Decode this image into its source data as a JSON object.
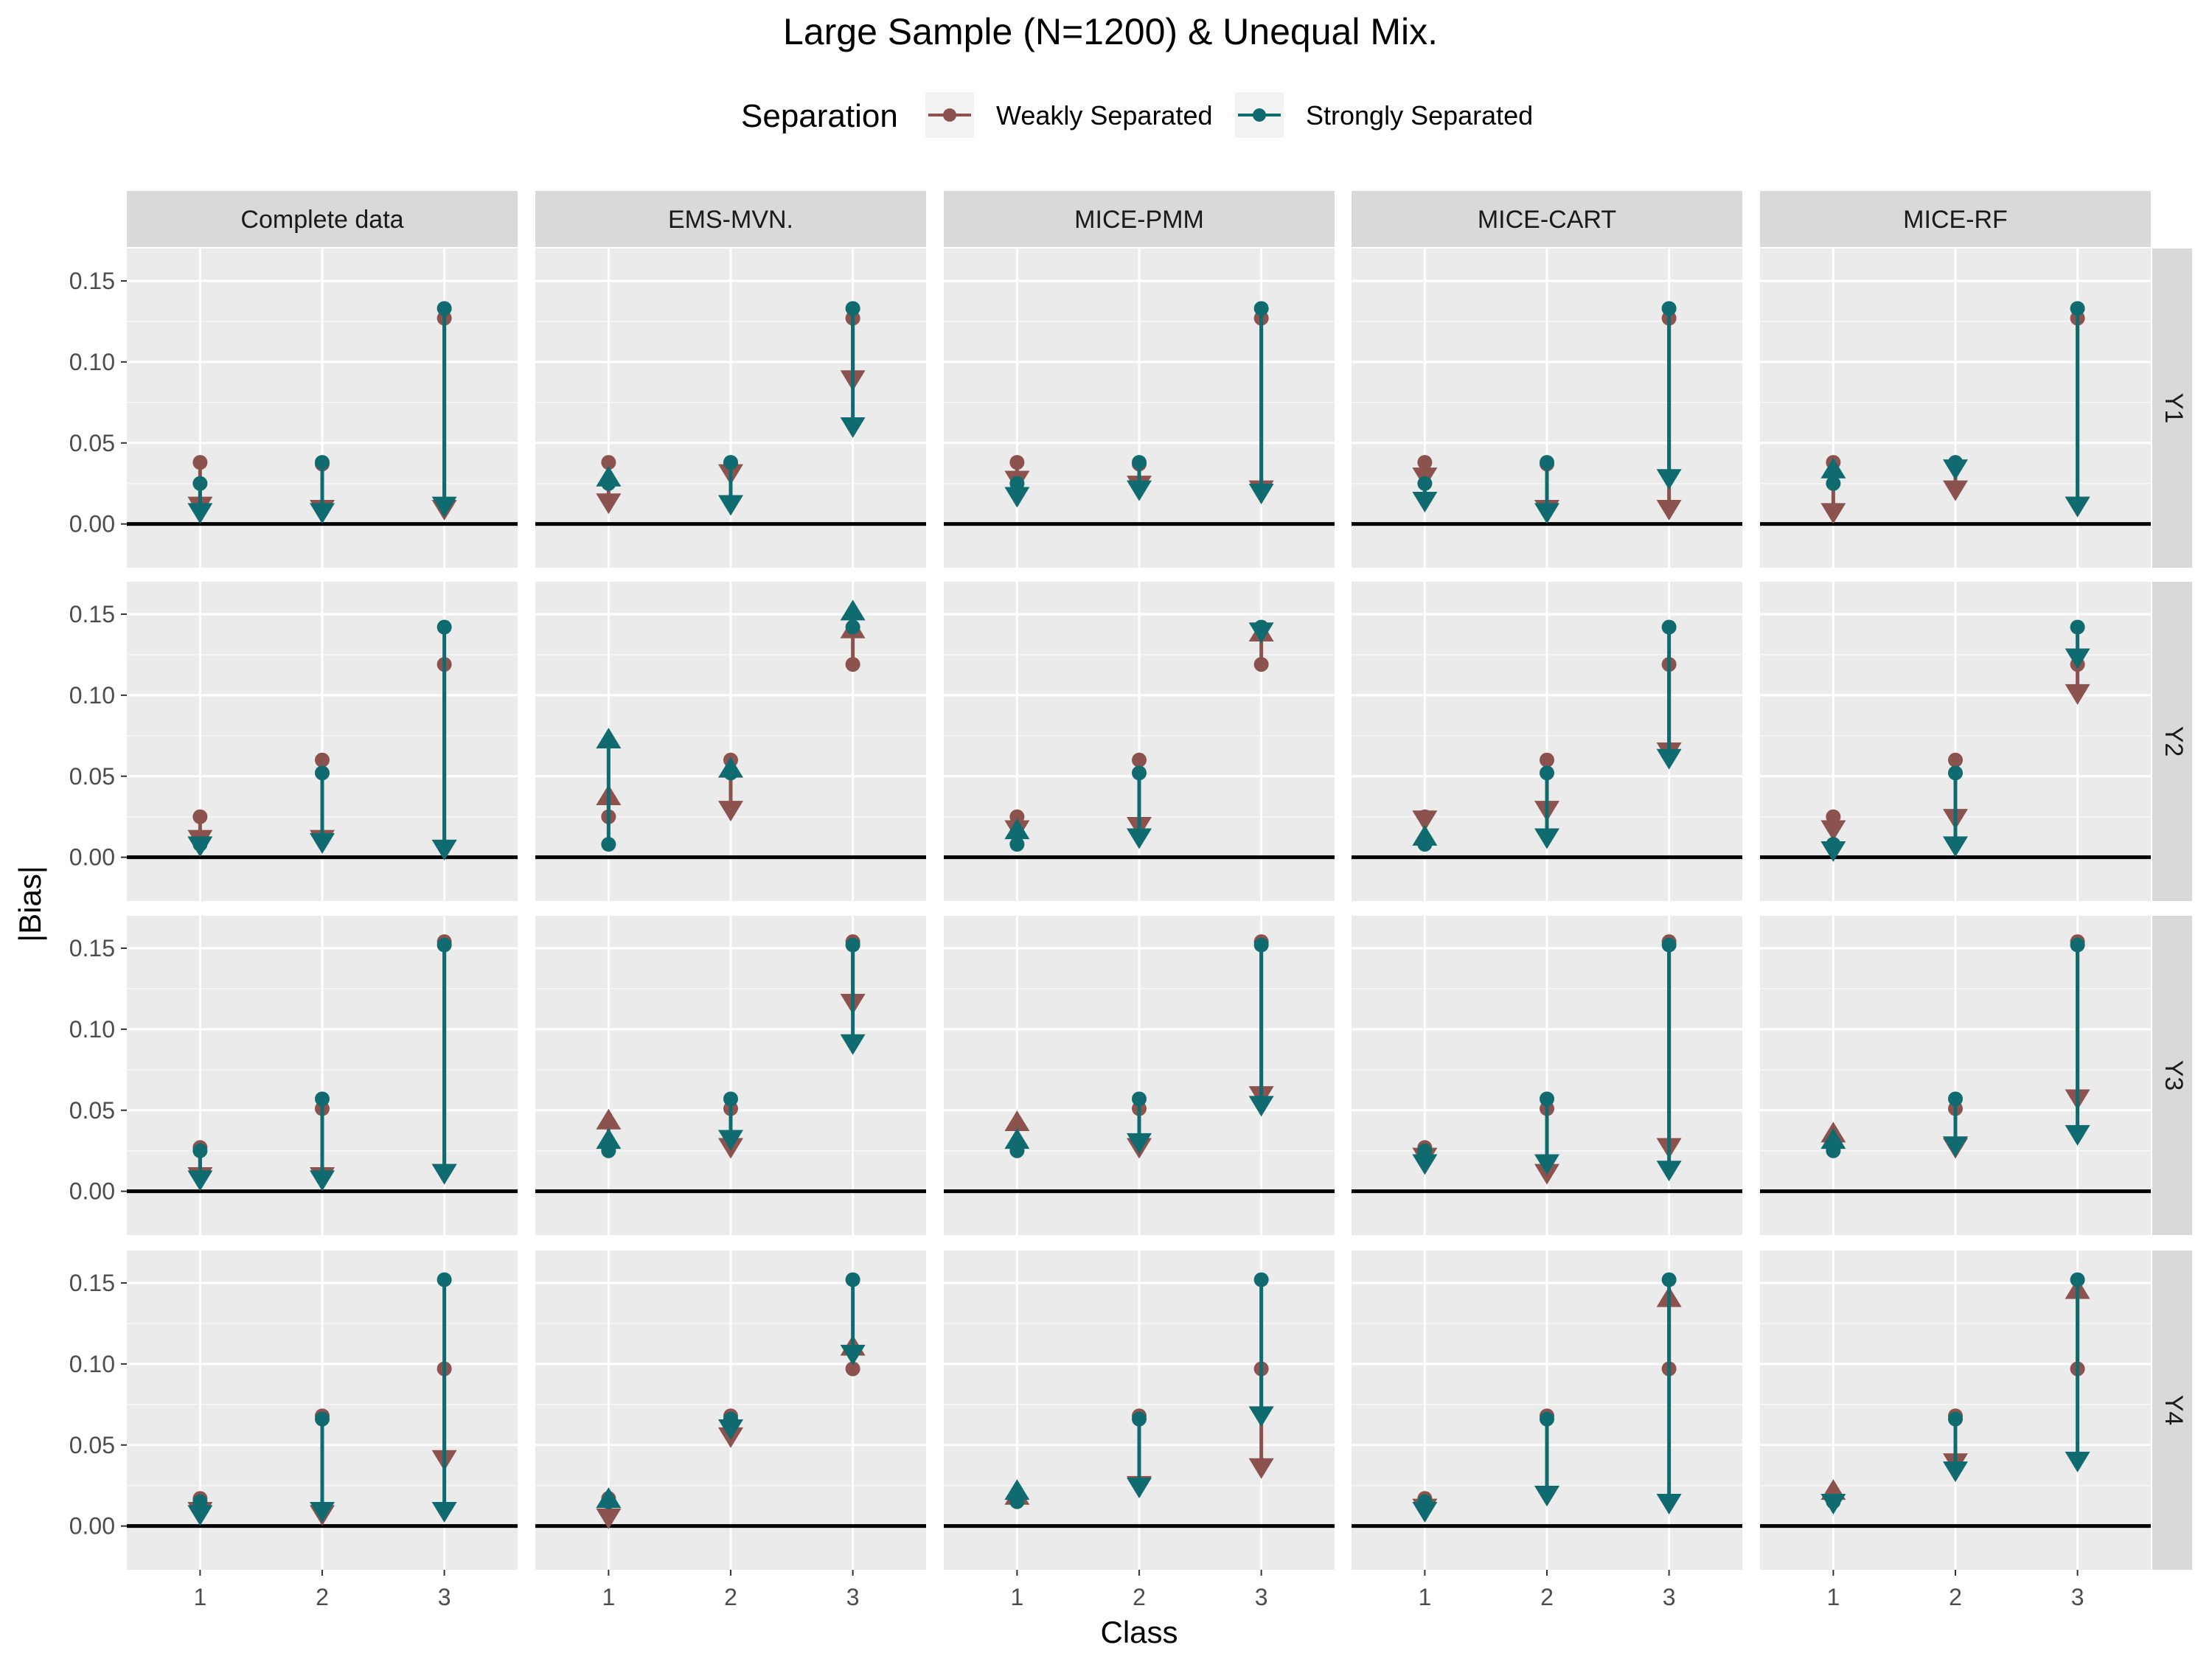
{
  "title": "Large Sample (N=1200) & Unequal Mix.",
  "legend": {
    "title": "Separation",
    "items": [
      {
        "label": "Weakly Separated",
        "color": "#8B524E"
      },
      {
        "label": "Strongly Separated",
        "color": "#0F6B6F"
      }
    ]
  },
  "axes": {
    "xlabel": "Class",
    "ylabel": "|Bias|",
    "x_ticks": [
      "1",
      "2",
      "3"
    ],
    "y_ticks": [
      "0.00",
      "0.05",
      "0.10",
      "0.15"
    ]
  },
  "chart_data": {
    "type": "scatter",
    "description_keys": [
      "start = value at complete data (circle)",
      "end = value after method (triangle)"
    ],
    "methods": [
      "Complete data",
      "EMS-MVN.",
      "MICE-PMM",
      "MICE-CART",
      "MICE-RF"
    ],
    "variables": [
      "Y1",
      "Y2",
      "Y3",
      "Y4"
    ],
    "x": [
      1,
      2,
      3
    ],
    "ylim": [
      -0.027,
      0.17
    ],
    "grid": true,
    "legend_position": "top",
    "series": [
      {
        "name": "Weakly Separated",
        "start": {
          "Y1": [
            0.038,
            0.037,
            0.127
          ],
          "Y2": [
            0.025,
            0.06,
            0.119
          ],
          "Y3": [
            0.027,
            0.051,
            0.154
          ],
          "Y4": [
            0.017,
            0.068,
            0.097
          ]
        },
        "end": {
          "Complete data": {
            "Y1": [
              0.012,
              0.01,
              0.01
            ],
            "Y2": [
              0.012,
              0.012,
              0.006
            ],
            "Y3": [
              0.01,
              0.01,
              0.012
            ],
            "Y4": [
              0.01,
              0.008,
              0.042
            ]
          },
          "EMS-MVN.": {
            "Y1": [
              0.014,
              0.032,
              0.09
            ],
            "Y2": [
              0.037,
              0.03,
              0.14
            ],
            "Y3": [
              0.043,
              0.028,
              0.117
            ],
            "Y4": [
              0.006,
              0.056,
              0.11
            ]
          },
          "MICE-PMM": {
            "Y1": [
              0.028,
              0.025,
              0.022
            ],
            "Y2": [
              0.018,
              0.02,
              0.138
            ],
            "Y3": [
              0.042,
              0.028,
              0.06
            ],
            "Y4": [
              0.018,
              0.026,
              0.037
            ]
          },
          "MICE-CART": {
            "Y1": [
              0.03,
              0.01,
              0.01
            ],
            "Y2": [
              0.024,
              0.03,
              0.066
            ],
            "Y3": [
              0.022,
              0.012,
              0.028
            ],
            "Y4": [
              0.012,
              0.02,
              0.14
            ]
          },
          "MICE-RF": {
            "Y1": [
              0.008,
              0.022,
              0.012
            ],
            "Y2": [
              0.018,
              0.025,
              0.102
            ],
            "Y3": [
              0.035,
              0.028,
              0.058
            ],
            "Y4": [
              0.021,
              0.04,
              0.145
            ]
          }
        }
      },
      {
        "name": "Strongly Separated",
        "start": {
          "Y1": [
            0.025,
            0.038,
            0.133
          ],
          "Y2": [
            0.008,
            0.052,
            0.142
          ],
          "Y3": [
            0.025,
            0.057,
            0.152
          ],
          "Y4": [
            0.015,
            0.066,
            0.152
          ]
        },
        "end": {
          "Complete data": {
            "Y1": [
              0.008,
              0.008,
              0.012
            ],
            "Y2": [
              0.008,
              0.01,
              0.006
            ],
            "Y3": [
              0.008,
              0.008,
              0.012
            ],
            "Y4": [
              0.008,
              0.01,
              0.01
            ]
          },
          "EMS-MVN.": {
            "Y1": [
              0.028,
              0.013,
              0.061
            ],
            "Y2": [
              0.072,
              0.054,
              0.151
            ],
            "Y3": [
              0.031,
              0.033,
              0.092
            ],
            "Y4": [
              0.016,
              0.061,
              0.107
            ]
          },
          "MICE-PMM": {
            "Y1": [
              0.018,
              0.022,
              0.02
            ],
            "Y2": [
              0.016,
              0.013,
              0.14
            ],
            "Y3": [
              0.031,
              0.031,
              0.054
            ],
            "Y4": [
              0.021,
              0.025,
              0.069
            ]
          },
          "MICE-CART": {
            "Y1": [
              0.015,
              0.008,
              0.029
            ],
            "Y2": [
              0.012,
              0.013,
              0.062
            ],
            "Y3": [
              0.018,
              0.018,
              0.014
            ],
            "Y4": [
              0.01,
              0.02,
              0.015
            ]
          },
          "MICE-RF": {
            "Y1": [
              0.033,
              0.035,
              0.012
            ],
            "Y2": [
              0.005,
              0.008,
              0.124
            ],
            "Y3": [
              0.031,
              0.029,
              0.036
            ],
            "Y4": [
              0.015,
              0.035,
              0.041
            ]
          }
        }
      }
    ]
  }
}
